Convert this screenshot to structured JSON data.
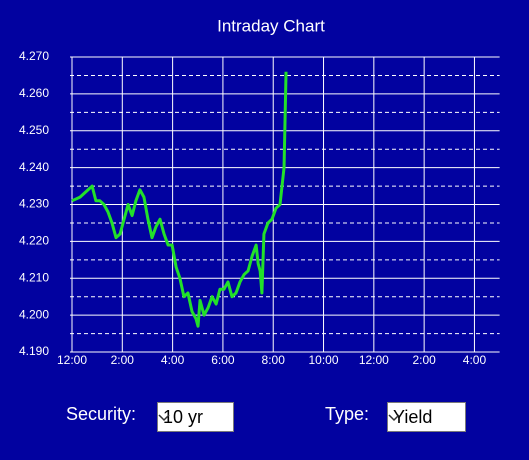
{
  "chart_data": {
    "type": "line",
    "title": "Intraday Chart",
    "x": [
      0,
      0.32,
      0.64,
      0.8,
      0.95,
      1.11,
      1.27,
      1.43,
      1.59,
      1.75,
      1.91,
      2.07,
      2.23,
      2.39,
      2.54,
      2.7,
      2.86,
      3.02,
      3.18,
      3.34,
      3.5,
      3.66,
      3.82,
      3.98,
      4.14,
      4.29,
      4.45,
      4.61,
      4.77,
      4.93,
      5.01,
      5.09,
      5.25,
      5.41,
      5.57,
      5.73,
      5.88,
      6.04,
      6.2,
      6.36,
      6.52,
      6.68,
      6.84,
      7.0,
      7.16,
      7.32,
      7.4,
      7.48,
      7.55,
      7.63,
      7.79,
      7.95,
      8.11,
      8.27,
      8.43,
      8.51
    ],
    "values": [
      4.231,
      4.232,
      4.234,
      4.235,
      4.231,
      4.231,
      4.23,
      4.228,
      4.225,
      4.221,
      4.222,
      4.226,
      4.23,
      4.227,
      4.231,
      4.234,
      4.232,
      4.226,
      4.221,
      4.224,
      4.226,
      4.222,
      4.219,
      4.219,
      4.213,
      4.21,
      4.205,
      4.206,
      4.201,
      4.199,
      4.197,
      4.204,
      4.2,
      4.202,
      4.205,
      4.203,
      4.207,
      4.207,
      4.209,
      4.205,
      4.206,
      4.209,
      4.211,
      4.212,
      4.216,
      4.219,
      4.214,
      4.212,
      4.206,
      4.222,
      4.225,
      4.226,
      4.229,
      4.23,
      4.24,
      4.266
    ],
    "color": "#22e02a",
    "xlim": [
      0,
      17
    ],
    "ylim": [
      4.19,
      4.27
    ],
    "xticks": [
      {
        "value": 0,
        "label": "12:00"
      },
      {
        "value": 2,
        "label": "2:00"
      },
      {
        "value": 4,
        "label": "4:00"
      },
      {
        "value": 6,
        "label": "6:00"
      },
      {
        "value": 8,
        "label": "8:00"
      },
      {
        "value": 10,
        "label": "10:00"
      },
      {
        "value": 12,
        "label": "12:00"
      },
      {
        "value": 14,
        "label": "2:00"
      },
      {
        "value": 16,
        "label": "4:00"
      }
    ],
    "yticks": [
      {
        "value": 4.19,
        "label": "4.190"
      },
      {
        "value": 4.2,
        "label": "4.200"
      },
      {
        "value": 4.21,
        "label": "4.210"
      },
      {
        "value": 4.22,
        "label": "4.220"
      },
      {
        "value": 4.23,
        "label": "4.230"
      },
      {
        "value": 4.24,
        "label": "4.240"
      },
      {
        "value": 4.25,
        "label": "4.250"
      },
      {
        "value": 4.26,
        "label": "4.260"
      },
      {
        "value": 4.27,
        "label": "4.270"
      }
    ],
    "minor_yticks": [
      4.195,
      4.205,
      4.215,
      4.225,
      4.235,
      4.245,
      4.255,
      4.265
    ],
    "grid": true
  },
  "controls": {
    "security": {
      "label": "Security:",
      "value": "10 yr"
    },
    "type": {
      "label": "Type:",
      "value": "Yield"
    }
  }
}
